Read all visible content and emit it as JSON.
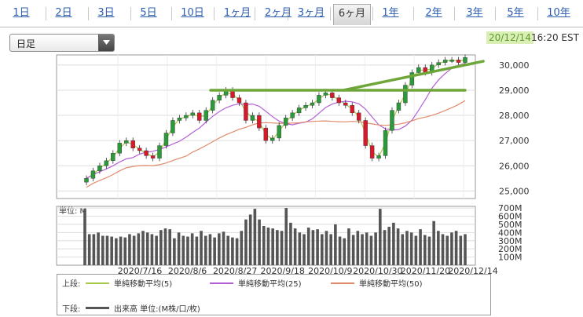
{
  "tabs": [
    {
      "label": "1日"
    },
    {
      "label": "2日"
    },
    {
      "label": "3日"
    },
    {
      "label": "5日"
    },
    {
      "label": "10日"
    },
    {
      "label": "1ヶ月"
    },
    {
      "label": "2ヶ月"
    },
    {
      "label": "3ヶ月"
    },
    {
      "label": "6ヶ月"
    },
    {
      "label": "1年"
    },
    {
      "label": "2年"
    },
    {
      "label": "3年"
    },
    {
      "label": "5年"
    },
    {
      "label": "10年"
    }
  ],
  "active_tab": "6ヶ月",
  "period_select": {
    "value": "日足"
  },
  "header": {
    "date": "20/12/14",
    "time": "16:20 EST"
  },
  "colors": {
    "ma5": "#a6c94a",
    "ma25": "#b45fd6",
    "ma50": "#e08a6c",
    "trend": "#6fa63a",
    "up": "#2c9a3a",
    "down": "#d9182a",
    "volume": "#555555"
  },
  "legend": {
    "upper_label": "上段:",
    "lower_label": "下段:",
    "ma5": "単純移動平均(5)",
    "ma25": "単純移動平均(25)",
    "ma50": "単純移動平均(50)",
    "volume": "出来高 単位:(M株/口/枚)"
  },
  "chart_data": [
    {
      "type": "candlestick",
      "y_ticks": [
        25000,
        26000,
        27000,
        28000,
        29000,
        30000
      ],
      "y_tick_labels": [
        "25,000",
        "26,000",
        "27,000",
        "28,000",
        "29,000",
        "30,000"
      ],
      "ylim": [
        24700,
        30400
      ],
      "grid": true,
      "trendlines": [
        {
          "from": [
            0,
            29000
          ],
          "to": [
            1,
            29000
          ]
        },
        {
          "from": [
            0.72,
            29000
          ],
          "to": [
            1,
            30150
          ]
        }
      ],
      "close_series": [
        25500,
        25800,
        26000,
        26200,
        26500,
        26900,
        27000,
        26700,
        26600,
        26400,
        26300,
        26800,
        27300,
        27800,
        27900,
        28000,
        28100,
        27800,
        28200,
        28600,
        28800,
        29000,
        28700,
        28500,
        27800,
        28000,
        27500,
        27000,
        27100,
        27600,
        27900,
        28100,
        28300,
        28400,
        28500,
        28800,
        28900,
        28700,
        28500,
        28400,
        28100,
        27800,
        26800,
        26300,
        26400,
        27400,
        28200,
        28500,
        29200,
        29700,
        29900,
        29700,
        30000,
        30100,
        30200,
        30200,
        30100,
        30300
      ]
    },
    {
      "type": "bar",
      "y_unit_label": "単位: M",
      "y_ticks": [
        100,
        200,
        300,
        400,
        500,
        600,
        700
      ],
      "y_tick_labels": [
        "100M",
        "200M",
        "300M",
        "400M",
        "500M",
        "600M",
        "700M"
      ],
      "ylim": [
        0,
        720
      ],
      "x_tick_labels": [
        "2020/7/16",
        "2020/8/6",
        "2020/8/27",
        "2020/9/18",
        "2020/10/9",
        "2020/10/30",
        "2020/11/20",
        "2020/12/14"
      ],
      "values": [
        690,
        380,
        380,
        400,
        360,
        360,
        350,
        330,
        350,
        340,
        380,
        360,
        390,
        420,
        400,
        380,
        360,
        430,
        450,
        440,
        330,
        400,
        360,
        350,
        390,
        350,
        420,
        360,
        380,
        340,
        390,
        410,
        360,
        340,
        330,
        420,
        560,
        620,
        690,
        560,
        480,
        460,
        450,
        430,
        420,
        700,
        520,
        450,
        400,
        380,
        460,
        430,
        440,
        380,
        420,
        380,
        500,
        350,
        330,
        450,
        370,
        420,
        380,
        400,
        360,
        400,
        690,
        430,
        470,
        520,
        450,
        380,
        420,
        400,
        360,
        440,
        370,
        350,
        540,
        420,
        380,
        360,
        400,
        420,
        360,
        380
      ]
    }
  ]
}
